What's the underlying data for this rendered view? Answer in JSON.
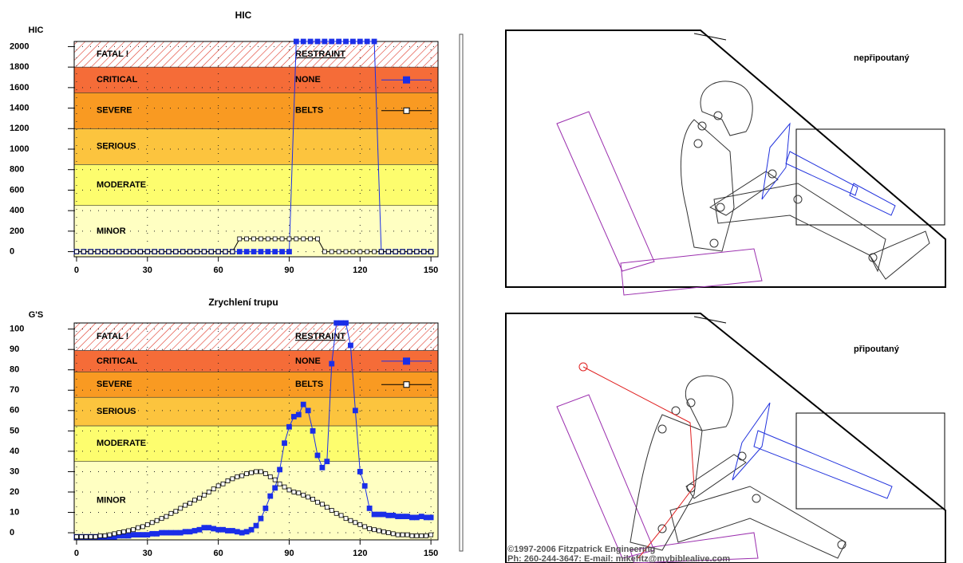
{
  "chart_data": [
    {
      "type": "line",
      "title": "HIC",
      "y_label": "HIC",
      "legend_title": "RESTRAINT",
      "x": [
        0,
        3,
        6,
        9,
        12,
        15,
        18,
        21,
        24,
        27,
        30,
        33,
        36,
        39,
        42,
        45,
        48,
        51,
        54,
        57,
        60,
        63,
        66,
        69,
        72,
        75,
        78,
        81,
        84,
        87,
        90,
        93,
        96,
        99,
        102,
        105,
        108,
        111,
        114,
        117,
        120,
        123,
        126,
        129,
        132,
        135,
        138,
        141,
        144,
        147,
        150
      ],
      "series": [
        {
          "name": "NONE",
          "color": "#1a2ee8",
          "marker": "filled",
          "values": [
            0,
            0,
            0,
            0,
            0,
            0,
            0,
            0,
            0,
            0,
            0,
            0,
            0,
            0,
            0,
            0,
            0,
            0,
            0,
            0,
            0,
            0,
            0,
            0,
            0,
            0,
            0,
            0,
            0,
            0,
            0,
            2050,
            2050,
            2050,
            2050,
            2050,
            2050,
            2050,
            2050,
            2050,
            2050,
            2050,
            2050,
            0,
            0,
            0,
            0,
            0,
            0,
            0,
            0
          ]
        },
        {
          "name": "BELTS",
          "color": "#000000",
          "marker": "open",
          "values": [
            0,
            0,
            0,
            0,
            0,
            0,
            0,
            0,
            0,
            0,
            0,
            0,
            0,
            0,
            0,
            0,
            0,
            0,
            0,
            0,
            0,
            0,
            0,
            125,
            125,
            125,
            125,
            125,
            125,
            125,
            125,
            125,
            125,
            125,
            125,
            0,
            0,
            0,
            0,
            0,
            0,
            0,
            0,
            0,
            0,
            0,
            0,
            0,
            0,
            0,
            0
          ]
        }
      ],
      "bands": [
        {
          "label": "MINOR",
          "to": 450,
          "color": "#ffffc2"
        },
        {
          "label": "MODERATE",
          "to": 850,
          "color": "#fdfd6e"
        },
        {
          "label": "SERIOUS",
          "to": 1200,
          "color": "#fcc43e"
        },
        {
          "label": "SEVERE",
          "to": 1550,
          "color": "#f99a22"
        },
        {
          "label": "CRITICAL",
          "to": 1800,
          "color": "#f56c38"
        },
        {
          "label": "FATAL !",
          "to": 2050,
          "color": "hatch"
        }
      ],
      "xlim": [
        -1,
        153
      ],
      "ylim": [
        -50,
        2050
      ],
      "xticks": [
        0,
        30,
        60,
        90,
        120,
        150
      ],
      "yticks": [
        0,
        200,
        400,
        600,
        800,
        1000,
        1200,
        1400,
        1600,
        1800,
        2000
      ],
      "grid": true
    },
    {
      "type": "line",
      "title": "Zrychlení trupu",
      "y_label": "G'S",
      "legend_title": "RESTRAINT",
      "x": [
        0,
        2,
        4,
        6,
        8,
        10,
        12,
        14,
        16,
        18,
        20,
        22,
        24,
        26,
        28,
        30,
        32,
        34,
        36,
        38,
        40,
        42,
        44,
        46,
        48,
        50,
        52,
        54,
        56,
        58,
        60,
        62,
        64,
        66,
        68,
        70,
        72,
        74,
        76,
        78,
        80,
        82,
        84,
        86,
        88,
        90,
        92,
        94,
        96,
        98,
        100,
        102,
        104,
        106,
        108,
        110,
        112,
        114,
        116,
        118,
        120,
        122,
        124,
        126,
        128,
        130,
        132,
        134,
        136,
        138,
        140,
        142,
        144,
        146,
        148,
        150
      ],
      "series": [
        {
          "name": "NONE",
          "color": "#1a2ee8",
          "marker": "filled",
          "values": [
            -2,
            -2,
            -2,
            -2,
            -2,
            -2,
            -2,
            -2,
            -2,
            -1.5,
            -1.5,
            -1.5,
            -1,
            -1,
            -1,
            -1,
            -0.5,
            -0.5,
            0,
            0,
            0,
            0,
            0,
            0.5,
            0.5,
            1,
            1.5,
            2.5,
            2.5,
            2,
            1.5,
            1.5,
            1,
            1,
            0.5,
            0,
            0.5,
            1.5,
            3.5,
            7,
            12,
            18,
            22,
            31,
            44,
            52,
            57,
            58,
            63,
            60,
            50,
            38,
            32,
            35,
            83,
            103,
            103,
            103,
            92,
            60,
            30,
            23,
            12,
            9,
            9,
            9,
            8.5,
            8.5,
            8,
            8,
            8,
            7.5,
            7.5,
            8,
            7.5,
            7.5
          ]
        },
        {
          "name": "BELTS",
          "color": "#000000",
          "marker": "open",
          "values": [
            -2,
            -2,
            -2,
            -2,
            -2,
            -1.5,
            -1.5,
            -1,
            -0.5,
            0,
            0.5,
            1,
            1.5,
            2.5,
            3,
            4,
            5,
            6,
            7,
            8,
            9.5,
            10.5,
            12,
            13.5,
            14.5,
            16,
            17,
            18.5,
            20,
            21.5,
            23,
            24,
            25.5,
            26.5,
            27.5,
            28,
            29,
            29.5,
            30,
            30,
            29,
            27.5,
            26,
            24,
            22.5,
            21,
            20,
            19.5,
            18.5,
            17.5,
            16.5,
            15,
            14,
            12.5,
            11,
            9.5,
            8.5,
            7,
            6,
            5,
            4,
            3,
            2,
            1.5,
            1,
            0.5,
            0,
            -0.5,
            -1,
            -1,
            -1,
            -1.5,
            -1.5,
            -1.5,
            -1.5,
            -1
          ]
        }
      ],
      "bands": [
        {
          "label": "MINOR",
          "to": 35,
          "color": "#ffffc2"
        },
        {
          "label": "MODERATE",
          "to": 52.5,
          "color": "#fdfd6e"
        },
        {
          "label": "SERIOUS",
          "to": 66.5,
          "color": "#fcc43e"
        },
        {
          "label": "SEVERE",
          "to": 79,
          "color": "#f99a22"
        },
        {
          "label": "CRITICAL",
          "to": 89.5,
          "color": "#f56c38"
        },
        {
          "label": "FATAL !",
          "to": 103,
          "color": "hatch"
        }
      ],
      "xlim": [
        -1,
        153
      ],
      "ylim": [
        -3.5,
        103
      ],
      "xticks": [
        0,
        30,
        60,
        90,
        120,
        150
      ],
      "yticks": [
        0,
        10,
        20,
        30,
        40,
        50,
        60,
        70,
        80,
        90,
        100
      ],
      "grid": true
    }
  ],
  "diagrams": [
    {
      "label": "nepřipoutaný"
    },
    {
      "label": "připoutaný"
    }
  ],
  "footer": [
    "©1997-2006 Fitzpatrick Engineering",
    "Ph: 260-244-3647: E-mail: mikefitz@mybiblealive.com"
  ]
}
